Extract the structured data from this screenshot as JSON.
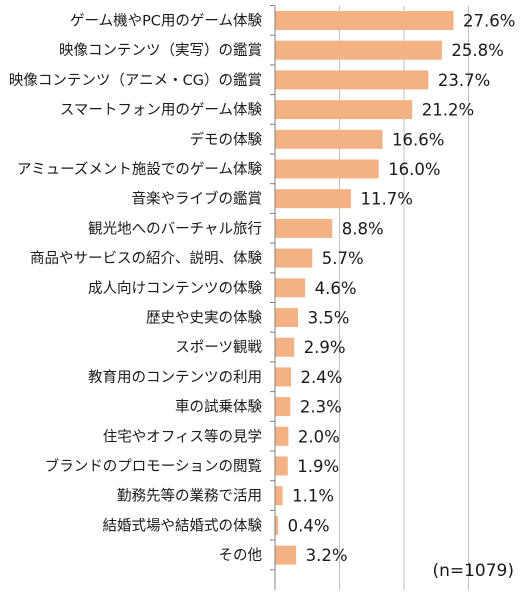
{
  "chart_data": {
    "type": "bar",
    "orientation": "horizontal",
    "categories": [
      "ゲーム機やPC用のゲーム体験",
      "映像コンテンツ（実写）の鑑賞",
      "映像コンテンツ（アニメ・CG）の鑑賞",
      "スマートフォン用のゲーム体験",
      "デモの体験",
      "アミューズメント施設でのゲーム体験",
      "音楽やライブの鑑賞",
      "観光地へのバーチャル旅行",
      "商品やサービスの紹介、説明、体験",
      "成人向けコンテンツの体験",
      "歴史や史実の体験",
      "スポーツ観戦",
      "教育用のコンテンツの利用",
      "車の試乗体験",
      "住宅やオフィス等の見学",
      "ブランドのプロモーションの閲覧",
      "勤務先等の業務で活用",
      "結婚式場や結婚式の体験",
      "その他"
    ],
    "values": [
      27.6,
      25.8,
      23.7,
      21.2,
      16.6,
      16.0,
      11.7,
      8.8,
      5.7,
      4.6,
      3.5,
      2.9,
      2.4,
      2.3,
      2.0,
      1.9,
      1.1,
      0.4,
      3.2
    ],
    "value_labels": [
      "27.6%",
      "25.8%",
      "23.7%",
      "21.2%",
      "16.6%",
      "16.0%",
      "11.7%",
      "8.8%",
      "5.7%",
      "4.6%",
      "3.5%",
      "2.9%",
      "2.4%",
      "2.3%",
      "2.0%",
      "1.9%",
      "1.1%",
      "0.4%",
      "3.2%"
    ],
    "xlim": [
      0,
      32
    ],
    "grid": true,
    "note": "(n=1079)",
    "bar_color": "#f4b183",
    "axis_color": "#808080",
    "grid_color": "#bfbfbf"
  }
}
